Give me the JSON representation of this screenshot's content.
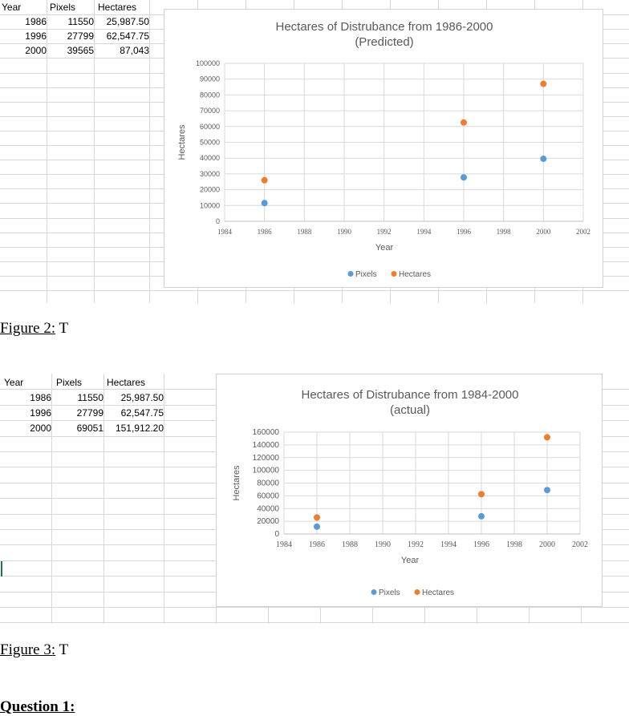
{
  "colors": {
    "pixels": "#5b9bd5",
    "hectares": "#ed7d31",
    "grid": "#d9d9d9",
    "sheet_grid": "#d8d8d8"
  },
  "sheet1": {
    "headers": [
      "Year",
      "Pixels",
      "Hectares"
    ],
    "rows": [
      [
        "1986",
        "11550",
        "25,987.50"
      ],
      [
        "1996",
        "27799",
        "62,547.75"
      ],
      [
        "2000",
        "39565",
        "87,043"
      ]
    ]
  },
  "sheet2": {
    "headers": [
      "Year",
      "Pixels",
      "Hectares"
    ],
    "rows": [
      [
        "1986",
        "11550",
        "25,987.50"
      ],
      [
        "1996",
        "27799",
        "62,547.75"
      ],
      [
        "2000",
        "69051",
        "151,912.20"
      ]
    ]
  },
  "chart_data": [
    {
      "type": "scatter",
      "title": "Hectares of Distrubance from 1986-2000",
      "subtitle": "(Predicted)",
      "xlabel": "Year",
      "ylabel": "Hectares",
      "xlim": [
        1984,
        2002
      ],
      "ylim": [
        0,
        100000
      ],
      "xticks": [
        1984,
        1986,
        1988,
        1990,
        1992,
        1994,
        1996,
        1998,
        2000,
        2002
      ],
      "yticks": [
        0,
        10000,
        20000,
        30000,
        40000,
        50000,
        60000,
        70000,
        80000,
        90000,
        100000
      ],
      "grid": true,
      "legend_position": "bottom",
      "series": [
        {
          "name": "Pixels",
          "x": [
            1986,
            1996,
            2000
          ],
          "y": [
            11550,
            27799,
            39565
          ]
        },
        {
          "name": "Hectares",
          "x": [
            1986,
            1996,
            2000
          ],
          "y": [
            25987.5,
            62547.75,
            87043
          ]
        }
      ]
    },
    {
      "type": "scatter",
      "title": "Hectares of Distrubance from 1984-2000",
      "subtitle": "(actual)",
      "xlabel": "Year",
      "ylabel": "Hectares",
      "xlim": [
        1984,
        2002
      ],
      "ylim": [
        0,
        160000
      ],
      "xticks": [
        1984,
        1986,
        1988,
        1990,
        1992,
        1994,
        1996,
        1998,
        2000,
        2002
      ],
      "yticks": [
        0,
        20000,
        40000,
        60000,
        80000,
        100000,
        120000,
        140000,
        160000
      ],
      "grid": true,
      "legend_position": "bottom",
      "series": [
        {
          "name": "Pixels",
          "x": [
            1986,
            1996,
            2000
          ],
          "y": [
            11550,
            27799,
            69051
          ]
        },
        {
          "name": "Hectares",
          "x": [
            1986,
            1996,
            2000
          ],
          "y": [
            25987.5,
            62547.75,
            151912.2
          ]
        }
      ]
    }
  ],
  "captions": {
    "fig2_label": "Figure 2:",
    "fig2_text": " T",
    "fig3_label": "Figure 3:",
    "fig3_text": " T",
    "question": "Question 1:"
  }
}
